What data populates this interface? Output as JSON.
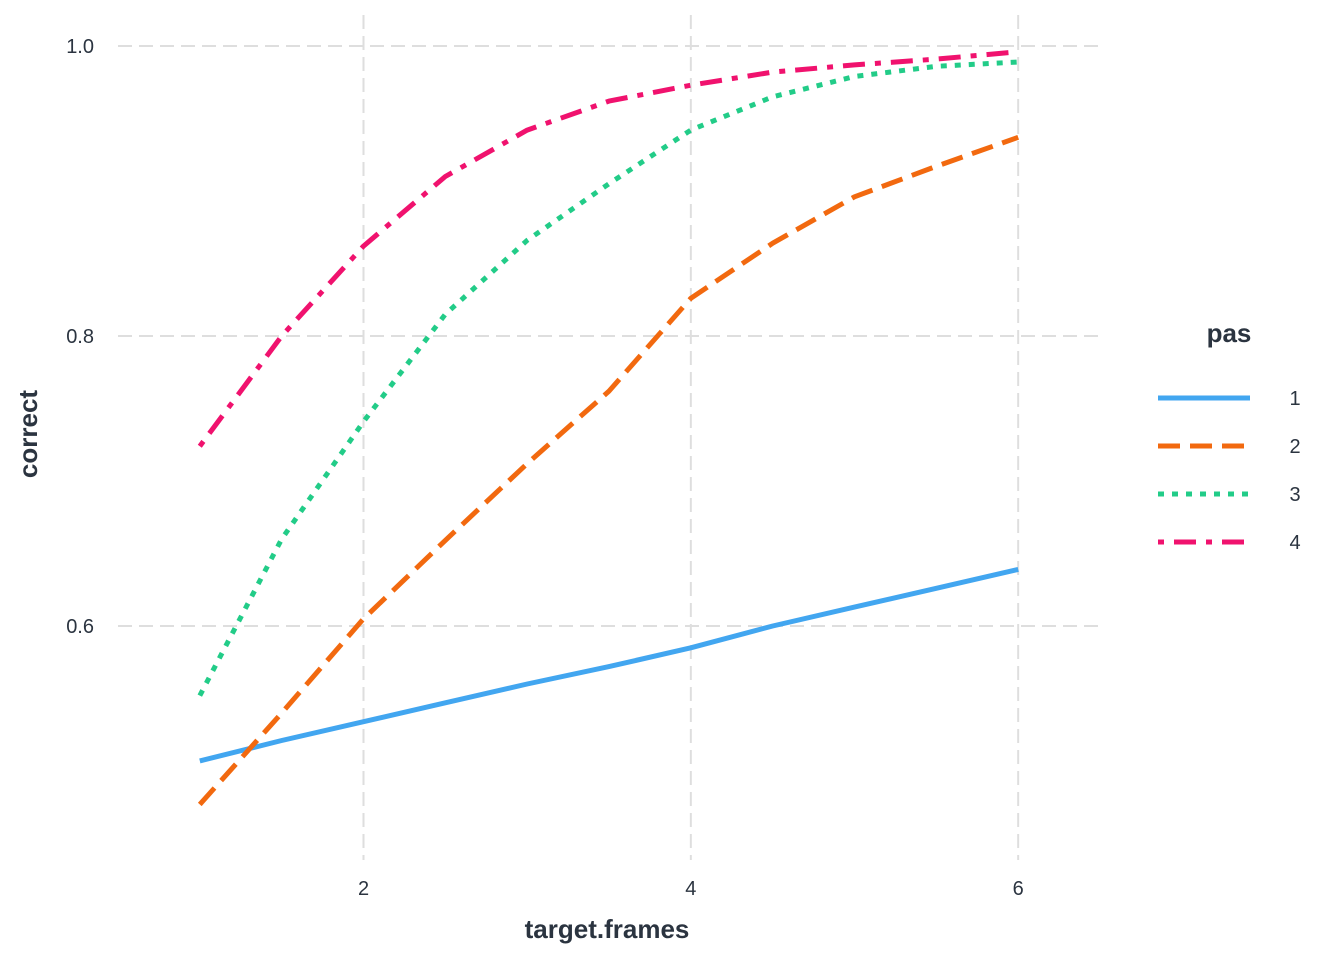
{
  "chart_data": {
    "type": "line",
    "title": "",
    "xlabel": "target.frames",
    "ylabel": "correct",
    "xlim": [
      0.5,
      6.5
    ],
    "ylim": [
      0.47,
      1.0
    ],
    "x_ticks": [
      2,
      4,
      6
    ],
    "x_tick_labels": [
      "2",
      "4",
      "6"
    ],
    "y_ticks": [
      0.6,
      0.8,
      1.0
    ],
    "y_tick_labels": [
      "0.6",
      "0.8",
      "1.0"
    ],
    "grid": true,
    "legend": {
      "title": "pas",
      "position": "right"
    },
    "x": [
      1,
      1.5,
      2,
      2.5,
      3,
      3.5,
      4,
      4.5,
      5,
      5.5,
      6
    ],
    "series": [
      {
        "name": "1",
        "color": "#42a6f0",
        "dash": "solid",
        "values": [
          0.507,
          0.521,
          0.534,
          0.547,
          0.56,
          0.572,
          0.585,
          0.6,
          0.613,
          0.626,
          0.639
        ]
      },
      {
        "name": "2",
        "color": "#f2690f",
        "dash": "dashed",
        "values": [
          0.477,
          0.54,
          0.605,
          0.659,
          0.712,
          0.762,
          0.826,
          0.864,
          0.896,
          0.917,
          0.937
        ]
      },
      {
        "name": "3",
        "color": "#22cc88",
        "dash": "dotted",
        "values": [
          0.552,
          0.66,
          0.741,
          0.815,
          0.866,
          0.905,
          0.942,
          0.965,
          0.979,
          0.986,
          0.989
        ]
      },
      {
        "name": "4",
        "color": "#f0126e",
        "dash": "dotdash",
        "values": [
          0.724,
          0.8,
          0.862,
          0.91,
          0.942,
          0.962,
          0.973,
          0.982,
          0.987,
          0.991,
          0.996
        ]
      }
    ]
  }
}
